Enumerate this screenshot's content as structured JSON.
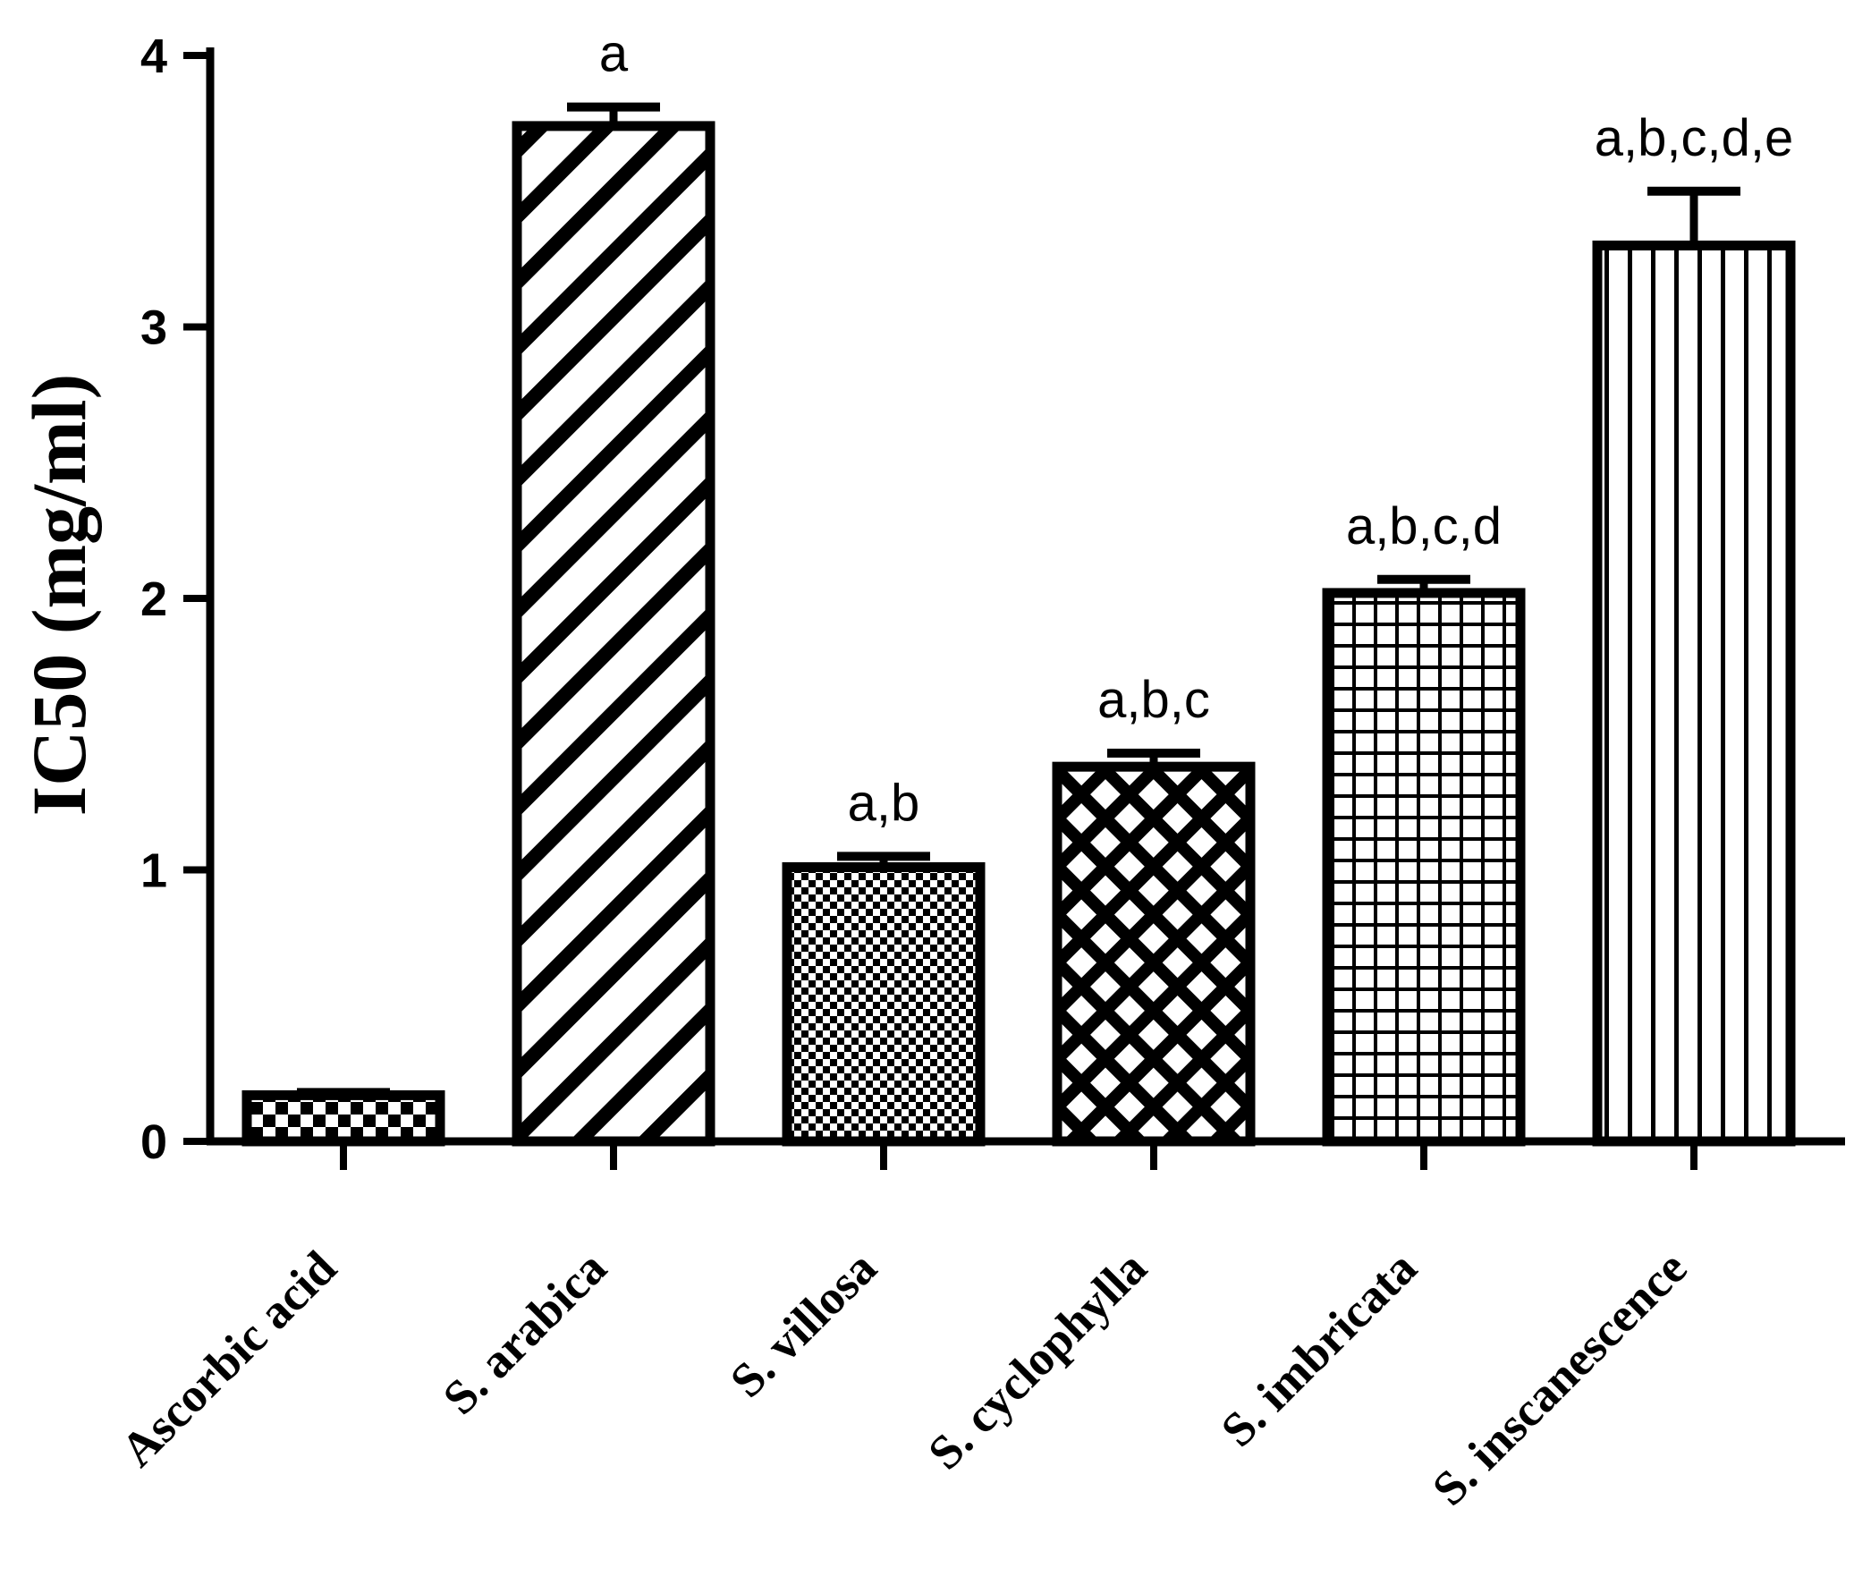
{
  "chart_data": {
    "type": "bar",
    "title": "",
    "xlabel": "",
    "ylabel": "IC50 (mg/ml)",
    "ylim": [
      0,
      4
    ],
    "yticks": [
      0,
      1,
      2,
      3,
      4
    ],
    "grid": false,
    "categories": [
      "Ascorbic acid",
      "S. arabica",
      "S. villosa",
      "S. cyclophylla",
      "S. imbricata",
      "S. inscanescence"
    ],
    "values": [
      0.17,
      3.74,
      1.01,
      1.38,
      2.02,
      3.3
    ],
    "error": [
      0.01,
      0.07,
      0.04,
      0.05,
      0.05,
      0.2
    ],
    "annotations": [
      "",
      "a",
      "a,b",
      "a,b,c",
      "a,b,c,d",
      "a,b,c,d,e"
    ],
    "patterns": [
      "small-checker",
      "diagonal-stripes",
      "fine-checker",
      "diamond-crosshatch",
      "grid",
      "vertical-stripes"
    ]
  },
  "colors": {
    "ink": "#000000",
    "background": "#ffffff"
  }
}
